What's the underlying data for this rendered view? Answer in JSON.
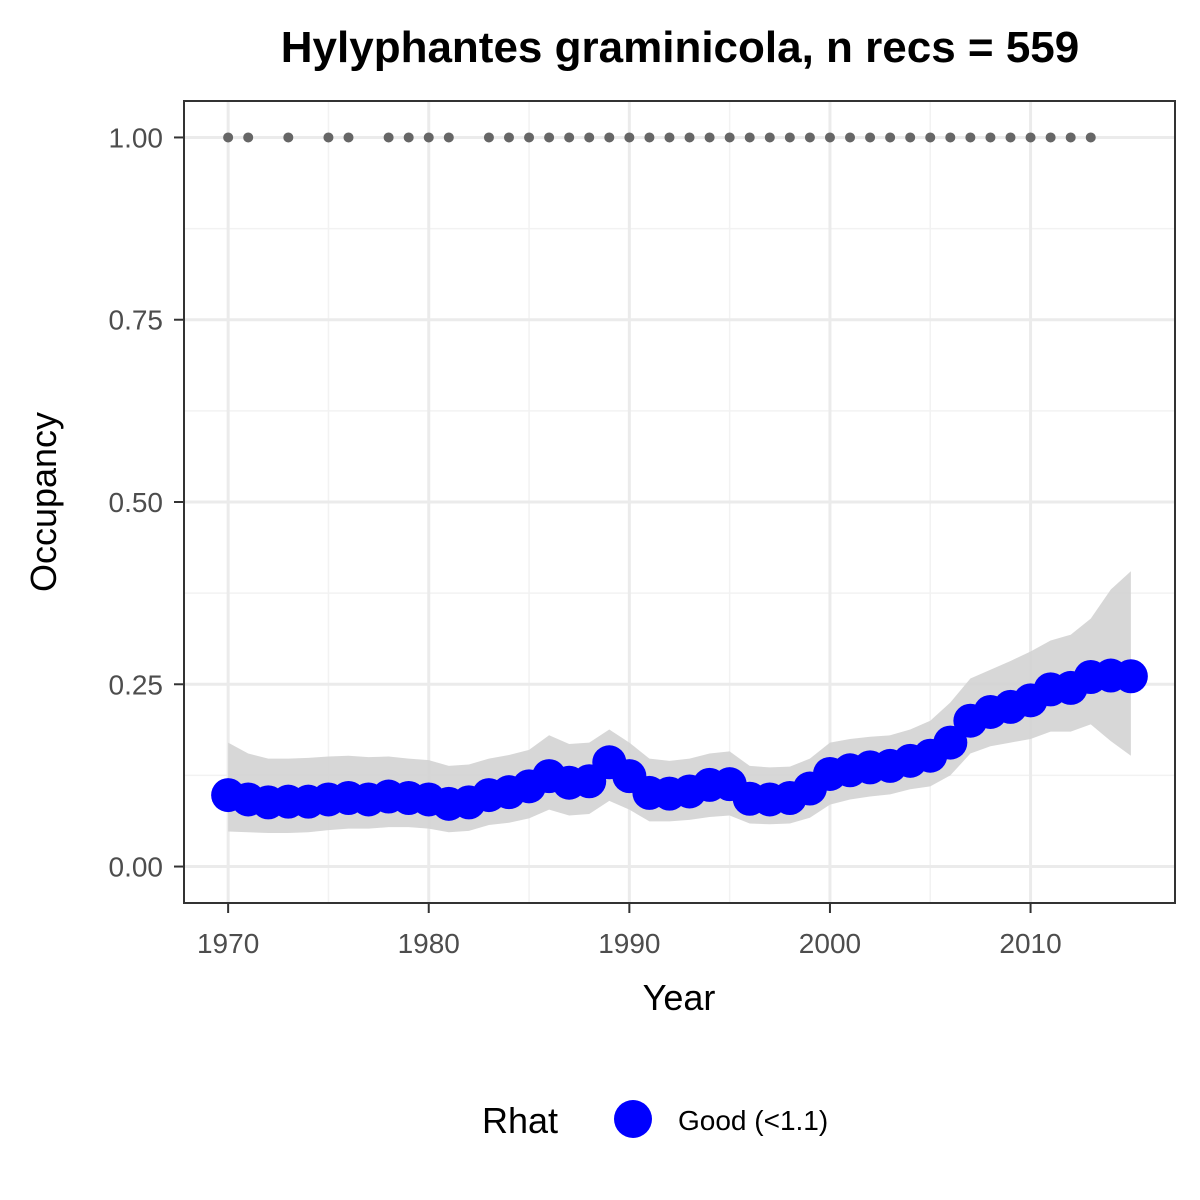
{
  "chart_data": {
    "type": "line",
    "title": "Hylyphantes graminicola, n recs = 559",
    "xlabel": "Year",
    "ylabel": "Occupancy",
    "xlim": [
      1967.8,
      1917.2
    ],
    "ylim": [
      -0.05,
      1.05
    ],
    "x_ticks": [
      1970,
      1980,
      1990,
      2000,
      2010
    ],
    "x_tick_labels": [
      "1970",
      "1980",
      "1990",
      "2000",
      "2010"
    ],
    "y_ticks": [
      0,
      0.25,
      0.5,
      0.75,
      1
    ],
    "y_tick_labels": [
      "0.00",
      "0.25",
      "0.50",
      "0.75",
      "1.00"
    ],
    "grid": true,
    "legend": {
      "title": "Rhat",
      "position": "bottom",
      "entries": [
        {
          "label": "Good (<1.1)",
          "color": "#0000ff"
        }
      ]
    },
    "colors": {
      "series": "#0000ff",
      "ribbon": "#d3d3d3",
      "records": "#666666"
    },
    "record_years": [
      1970,
      1971,
      1973,
      1975,
      1976,
      1978,
      1979,
      1980,
      1981,
      1983,
      1984,
      1985,
      1986,
      1987,
      1988,
      1989,
      1990,
      1991,
      1992,
      1993,
      1994,
      1995,
      1996,
      1997,
      1998,
      1999,
      2000,
      2001,
      2002,
      2003,
      2004,
      2005,
      2006,
      2007,
      2008,
      2009,
      2010,
      2011,
      2012,
      2013
    ],
    "record_value": 1.0,
    "series": [
      {
        "name": "Good (<1.1)",
        "x": [
          1970,
          1971,
          1972,
          1973,
          1974,
          1975,
          1976,
          1977,
          1978,
          1979,
          1980,
          1981,
          1982,
          1983,
          1984,
          1985,
          1986,
          1987,
          1988,
          1989,
          1990,
          1991,
          1992,
          1993,
          1994,
          1995,
          1996,
          1997,
          1998,
          1999,
          2000,
          2001,
          2002,
          2003,
          2004,
          2005,
          2006,
          2007,
          2008,
          2009,
          2010,
          2011,
          2012,
          2013,
          2014,
          2015
        ],
        "y": [
          0.098,
          0.092,
          0.088,
          0.089,
          0.089,
          0.092,
          0.094,
          0.092,
          0.096,
          0.094,
          0.092,
          0.086,
          0.088,
          0.098,
          0.102,
          0.11,
          0.124,
          0.115,
          0.117,
          0.143,
          0.124,
          0.101,
          0.1,
          0.103,
          0.112,
          0.113,
          0.093,
          0.092,
          0.094,
          0.107,
          0.127,
          0.132,
          0.136,
          0.138,
          0.145,
          0.152,
          0.17,
          0.2,
          0.212,
          0.219,
          0.228,
          0.243,
          0.245,
          0.26,
          0.262,
          0.261
        ],
        "lower": [
          0.048,
          0.047,
          0.046,
          0.046,
          0.047,
          0.05,
          0.052,
          0.052,
          0.054,
          0.054,
          0.052,
          0.047,
          0.049,
          0.057,
          0.06,
          0.066,
          0.078,
          0.07,
          0.072,
          0.09,
          0.078,
          0.062,
          0.062,
          0.064,
          0.068,
          0.07,
          0.059,
          0.058,
          0.059,
          0.067,
          0.085,
          0.092,
          0.096,
          0.099,
          0.106,
          0.11,
          0.125,
          0.155,
          0.165,
          0.17,
          0.175,
          0.185,
          0.185,
          0.195,
          0.172,
          0.152
        ],
        "upper": [
          0.17,
          0.155,
          0.148,
          0.148,
          0.149,
          0.151,
          0.152,
          0.15,
          0.151,
          0.148,
          0.146,
          0.138,
          0.14,
          0.148,
          0.153,
          0.16,
          0.18,
          0.168,
          0.17,
          0.188,
          0.17,
          0.148,
          0.145,
          0.148,
          0.155,
          0.158,
          0.138,
          0.136,
          0.137,
          0.148,
          0.17,
          0.175,
          0.178,
          0.18,
          0.188,
          0.2,
          0.225,
          0.258,
          0.27,
          0.282,
          0.295,
          0.31,
          0.318,
          0.34,
          0.38,
          0.405
        ]
      }
    ]
  }
}
